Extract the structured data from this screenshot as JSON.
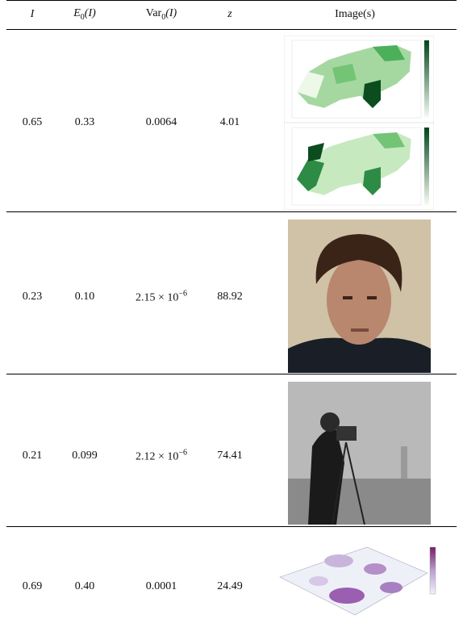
{
  "table": {
    "header": [
      {
        "main": "I"
      },
      {
        "main": "E",
        "sub": "0",
        "rest": "(I)"
      },
      {
        "main": "Var",
        "sub": "0",
        "rest": "(I)"
      },
      {
        "main": "z"
      },
      {
        "main": "Image(s)"
      }
    ],
    "rows": [
      [
        {
          "text": "0.65"
        },
        {
          "text": "0.33"
        },
        {
          "text": "0.0064"
        },
        {
          "text": "4.01"
        }
      ],
      [
        {
          "text": "0.23"
        },
        {
          "text": "0.10"
        },
        {
          "text": "2.15 × 10",
          "sup": "−6"
        },
        {
          "text": "88.92"
        }
      ],
      [
        {
          "text": "0.21"
        },
        {
          "text": "0.099"
        },
        {
          "text": "2.12 × 10",
          "sup": "−6"
        },
        {
          "text": "74.41"
        }
      ],
      [
        {
          "text": "0.69"
        },
        {
          "text": "0.40"
        },
        {
          "text": "0.0001"
        },
        {
          "text": "24.49"
        }
      ]
    ]
  }
}
